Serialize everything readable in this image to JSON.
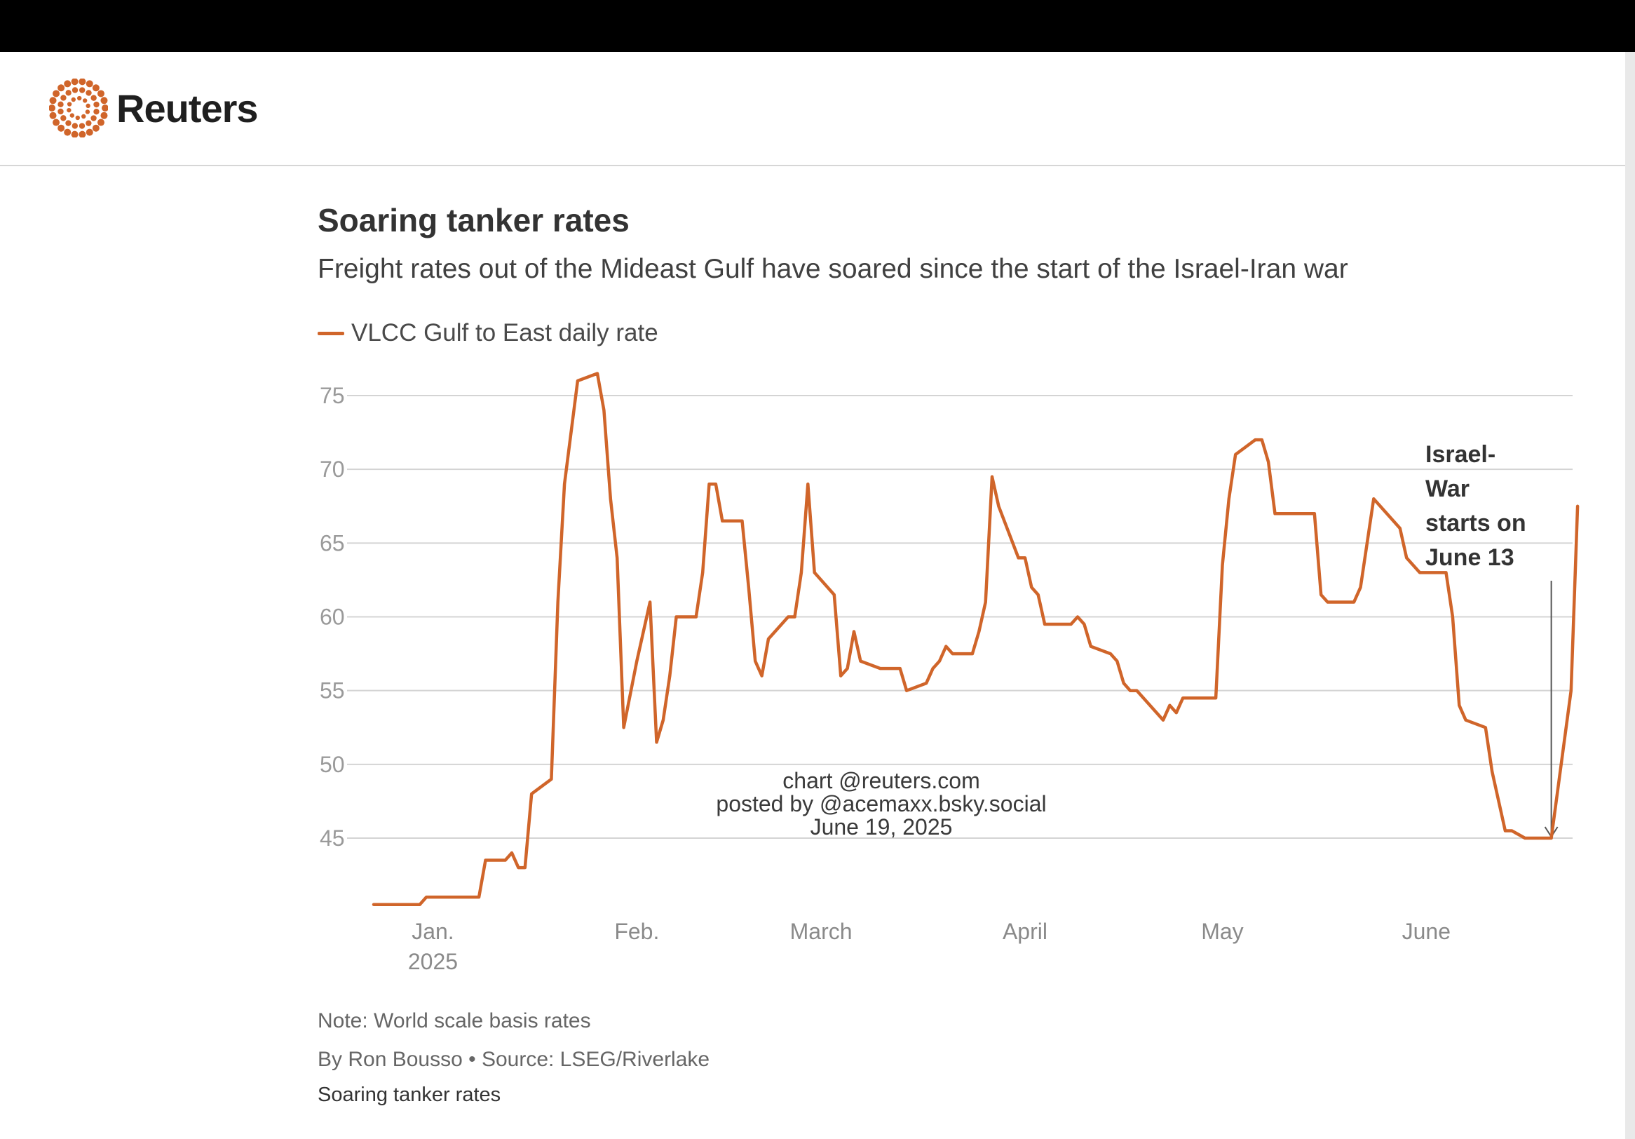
{
  "brand": {
    "name": "Reuters",
    "accent_color": "#d0652a"
  },
  "chart_data": {
    "type": "line",
    "title": "Soaring tanker rates",
    "subtitle": "Freight rates out of the Mideast Gulf have soared since the start of the Israel-Iran war",
    "legend_position": "top-left",
    "grid": true,
    "xlabel": "",
    "ylabel": "",
    "ylim": [
      40,
      78
    ],
    "yticks": [
      45,
      50,
      55,
      60,
      65,
      70,
      75
    ],
    "xlim": [
      "2024-12-23",
      "2025-06-21"
    ],
    "xtick_labels": [
      {
        "date": "2025-01-01",
        "label": "Jan.",
        "sub": "2025"
      },
      {
        "date": "2025-02-01",
        "label": "Feb.",
        "sub": ""
      },
      {
        "date": "2025-03-01",
        "label": "March",
        "sub": ""
      },
      {
        "date": "2025-04-01",
        "label": "April",
        "sub": ""
      },
      {
        "date": "2025-05-01",
        "label": "May",
        "sub": ""
      },
      {
        "date": "2025-06-01",
        "label": "June",
        "sub": ""
      }
    ],
    "series": [
      {
        "name": "VLCC Gulf to East daily rate",
        "color": "#d0652a",
        "points": [
          [
            "2024-12-23",
            40.5
          ],
          [
            "2024-12-30",
            40.5
          ],
          [
            "2024-12-31",
            41.0
          ],
          [
            "2025-01-02",
            41.0
          ],
          [
            "2025-01-08",
            41.0
          ],
          [
            "2025-01-09",
            43.5
          ],
          [
            "2025-01-12",
            43.5
          ],
          [
            "2025-01-13",
            44.0
          ],
          [
            "2025-01-14",
            43.0
          ],
          [
            "2025-01-15",
            43.0
          ],
          [
            "2025-01-16",
            48.0
          ],
          [
            "2025-01-19",
            49.0
          ],
          [
            "2025-01-20",
            61.0
          ],
          [
            "2025-01-21",
            69.0
          ],
          [
            "2025-01-23",
            76.0
          ],
          [
            "2025-01-26",
            76.5
          ],
          [
            "2025-01-27",
            74.0
          ],
          [
            "2025-01-28",
            68.0
          ],
          [
            "2025-01-29",
            64.0
          ],
          [
            "2025-01-30",
            52.5
          ],
          [
            "2025-02-01",
            57.0
          ],
          [
            "2025-02-03",
            61.0
          ],
          [
            "2025-02-04",
            51.5
          ],
          [
            "2025-02-05",
            53.0
          ],
          [
            "2025-02-06",
            56.0
          ],
          [
            "2025-02-07",
            60.0
          ],
          [
            "2025-02-10",
            60.0
          ],
          [
            "2025-02-11",
            63.0
          ],
          [
            "2025-02-12",
            69.0
          ],
          [
            "2025-02-13",
            69.0
          ],
          [
            "2025-02-14",
            66.5
          ],
          [
            "2025-02-17",
            66.5
          ],
          [
            "2025-02-18",
            62.0
          ],
          [
            "2025-02-19",
            57.0
          ],
          [
            "2025-02-20",
            56.0
          ],
          [
            "2025-02-21",
            58.5
          ],
          [
            "2025-02-24",
            60.0
          ],
          [
            "2025-02-25",
            60.0
          ],
          [
            "2025-02-26",
            63.0
          ],
          [
            "2025-02-27",
            69.0
          ],
          [
            "2025-02-28",
            63.0
          ],
          [
            "2025-03-03",
            61.5
          ],
          [
            "2025-03-04",
            56.0
          ],
          [
            "2025-03-05",
            56.5
          ],
          [
            "2025-03-06",
            59.0
          ],
          [
            "2025-03-07",
            57.0
          ],
          [
            "2025-03-10",
            56.5
          ],
          [
            "2025-03-13",
            56.5
          ],
          [
            "2025-03-14",
            55.0
          ],
          [
            "2025-03-17",
            55.5
          ],
          [
            "2025-03-18",
            56.5
          ],
          [
            "2025-03-19",
            57.0
          ],
          [
            "2025-03-20",
            58.0
          ],
          [
            "2025-03-21",
            57.5
          ],
          [
            "2025-03-24",
            57.5
          ],
          [
            "2025-03-25",
            59.0
          ],
          [
            "2025-03-26",
            61.0
          ],
          [
            "2025-03-27",
            69.5
          ],
          [
            "2025-03-28",
            67.5
          ],
          [
            "2025-03-31",
            64.0
          ],
          [
            "2025-04-01",
            64.0
          ],
          [
            "2025-04-02",
            62.0
          ],
          [
            "2025-04-03",
            61.5
          ],
          [
            "2025-04-04",
            59.5
          ],
          [
            "2025-04-08",
            59.5
          ],
          [
            "2025-04-09",
            60.0
          ],
          [
            "2025-04-10",
            59.5
          ],
          [
            "2025-04-11",
            58.0
          ],
          [
            "2025-04-14",
            57.5
          ],
          [
            "2025-04-15",
            57.0
          ],
          [
            "2025-04-16",
            55.5
          ],
          [
            "2025-04-17",
            55.0
          ],
          [
            "2025-04-18",
            55.0
          ],
          [
            "2025-04-22",
            53.0
          ],
          [
            "2025-04-23",
            54.0
          ],
          [
            "2025-04-24",
            53.5
          ],
          [
            "2025-04-25",
            54.5
          ],
          [
            "2025-04-30",
            54.5
          ],
          [
            "2025-05-01",
            63.5
          ],
          [
            "2025-05-02",
            68.0
          ],
          [
            "2025-05-03",
            71.0
          ],
          [
            "2025-05-06",
            72.0
          ],
          [
            "2025-05-07",
            72.0
          ],
          [
            "2025-05-08",
            70.5
          ],
          [
            "2025-05-09",
            67.0
          ],
          [
            "2025-05-15",
            67.0
          ],
          [
            "2025-05-16",
            61.5
          ],
          [
            "2025-05-17",
            61.0
          ],
          [
            "2025-05-21",
            61.0
          ],
          [
            "2025-05-22",
            62.0
          ],
          [
            "2025-05-24",
            68.0
          ],
          [
            "2025-05-28",
            66.0
          ],
          [
            "2025-05-29",
            64.0
          ],
          [
            "2025-05-31",
            63.0
          ],
          [
            "2025-06-04",
            63.0
          ],
          [
            "2025-06-05",
            60.0
          ],
          [
            "2025-06-06",
            54.0
          ],
          [
            "2025-06-07",
            53.0
          ],
          [
            "2025-06-10",
            52.5
          ],
          [
            "2025-06-11",
            49.5
          ],
          [
            "2025-06-13",
            45.5
          ],
          [
            "2025-06-14",
            45.5
          ],
          [
            "2025-06-16",
            45.0
          ],
          [
            "2025-06-20",
            45.0
          ],
          [
            "2025-06-23",
            55.0
          ],
          [
            "2025-06-24",
            67.5
          ]
        ]
      }
    ],
    "annotations": [
      {
        "lines": [
          "Israel-",
          "War",
          "starts on",
          "June 13"
        ],
        "date": "2025-06-20",
        "value": 45.0
      }
    ],
    "watermark": [
      "chart @reuters.com",
      "posted by @acemaxx.bsky.social",
      "June 19, 2025"
    ]
  },
  "footer": {
    "note": "Note: World scale basis rates",
    "byline": "By Ron Bousso • Source: LSEG/Riverlake",
    "caption": "Soaring tanker rates"
  }
}
